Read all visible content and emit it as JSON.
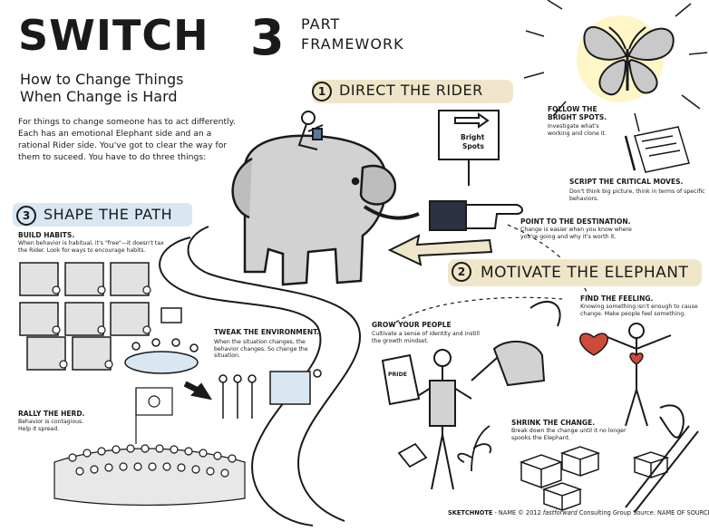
{
  "colors": {
    "ink": "#1a1a1a",
    "sky_blue": "#d8e7f1",
    "tan": "#efe6c9",
    "heart": "#cf4a3a"
  },
  "header": {
    "title": "SWITCH",
    "subtitle_line1": "How to Change Things",
    "subtitle_line2": "When Change is Hard",
    "intro": "For things to change someone has to act differently. Each has an emotional Elephant side and an a rational Rider side. You've got to clear the way for them to suceed. You have to do three things:"
  },
  "framework": {
    "number": "3",
    "line1": "PART",
    "line2": "FRAMEWORK"
  },
  "sections": {
    "rider": {
      "number": "1",
      "title": "DIRECT THE RIDER",
      "sign_line1": "Bright",
      "sign_line2": "Spots",
      "bright_spots_title": "FOLLOW THE BRIGHT SPOTS.",
      "bright_spots_body": "Investigate what's working and clone it.",
      "critical_title": "SCRIPT THE CRITICAL MOVES.",
      "critical_body": "Don't think big picture, think in terms of specific behaviors.",
      "destination_title": "POINT TO THE DESTINATION.",
      "destination_body": "Change is easier when you know where you're going and why it's worth it."
    },
    "elephant": {
      "number": "2",
      "title": "MOTIVATE THE ELEPHANT",
      "feeling_title": "FIND THE FEELING.",
      "feeling_body": "Knowing something isn't enough to cause change. Make people feel something.",
      "grow_title": "GROW YOUR PEOPLE",
      "grow_body": "Cultivate a sense of identity and instill the growth mindset.",
      "pride_label": "PRIDE",
      "shrink_title": "SHRINK THE CHANGE.",
      "shrink_body": "Break down the change until it no longer spooks the Elephant."
    },
    "path": {
      "number": "3",
      "title": "SHAPE THE PATH",
      "habits_title": "BUILD HABITS.",
      "habits_body": "When behavior is habitual, it's \"free\"—it doesn't tax the Rider. Look for ways to encourage habits.",
      "tweak_title": "TWEAK THE ENVIRONMENT.",
      "tweak_body": "When the situation changes, the behavior changes. So change the situation.",
      "herd_title": "RALLY THE HERD.",
      "herd_body": "Behavior is contagious. Help it spread."
    }
  },
  "footer": {
    "sketchnote": "SKETCHNOTE",
    "credit": " - NAME © 2012 ",
    "firm_italic": "fastforward",
    "firm_rest": " Consulting Group",
    "source": "  Source: NAME OF SOURCE"
  },
  "icons": [
    "butterfly-icon",
    "elephant-icon",
    "rider-icon",
    "signpost-icon",
    "pointing-hand-icon",
    "heart-icon",
    "sun-icon",
    "flag-icon",
    "watering-can-icon",
    "calendar-icon",
    "boxes-icon",
    "sprout-icon"
  ]
}
